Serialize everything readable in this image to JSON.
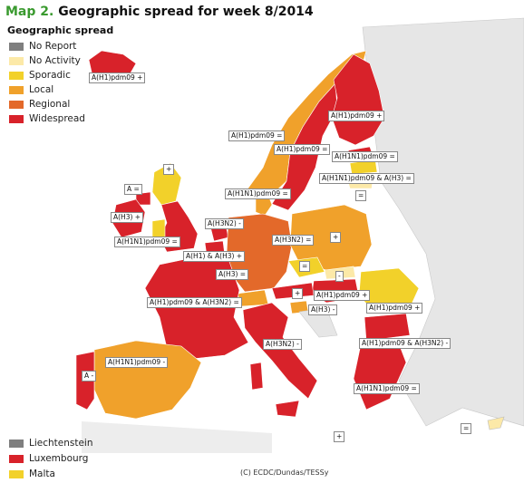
{
  "title": {
    "prefix": "Map 2.",
    "text": " Geographic spread for week 8/2014"
  },
  "legend": {
    "heading": "Geographic spread",
    "items": [
      {
        "label": "No Report",
        "color": "#7f7f7f"
      },
      {
        "label": "No Activity",
        "color": "#fce9a8"
      },
      {
        "label": "Sporadic",
        "color": "#f2d12a"
      },
      {
        "label": "Local",
        "color": "#f0a12b"
      },
      {
        "label": "Regional",
        "color": "#e3692a"
      },
      {
        "label": "Widespread",
        "color": "#d8222a"
      }
    ]
  },
  "small_states": [
    {
      "label": "Liechtenstein",
      "color": "#7f7f7f"
    },
    {
      "label": "Luxembourg",
      "color": "#d8222a"
    },
    {
      "label": "Malta",
      "color": "#f2d12a"
    }
  ],
  "virus_labels": [
    "A(H1)pdm09 +",
    "A(H1)pdm09 +",
    "A(H1)pdm09 =",
    "A(H1)pdm09 =",
    "A(H1N1)pdm09 =",
    "+",
    "A(H1N1)pdm09 & A(H3) =",
    "A(H1N1)pdm09 =",
    "=",
    "A =",
    "A(H3) +",
    "A(H3N2) -",
    "A(H1N1)pdm09 =",
    "A(H3N2) =",
    "+",
    "A(H1) & A(H3) +",
    "=",
    "A(H3) =",
    "-",
    "+",
    "A(H1)pdm09 +",
    "A(H1)pdm09 & A(H3N2) =",
    "A(H3) -",
    "A(H1)pdm09 +",
    "A(H3N2) -",
    "A(H1)pdm09 & A(H3N2) -",
    "A(H1N1)pdm09 -",
    "A -",
    "A(H1N1)pdm09 =",
    "=",
    "+"
  ],
  "credit": "(C) ECDC/Dundas/TESSy"
}
